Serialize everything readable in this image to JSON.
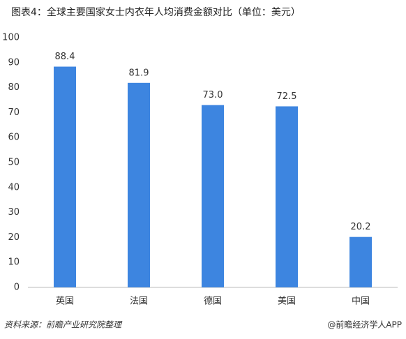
{
  "chart_data": {
    "type": "bar",
    "title": "图表4：全球主要国家女士内衣年人均消费金额对比（单位：美元）",
    "categories": [
      "英国",
      "法国",
      "德国",
      "美国",
      "中国"
    ],
    "values": [
      88.4,
      81.9,
      73.0,
      72.5,
      20.2
    ],
    "value_labels": [
      "88.4",
      "81.9",
      "73.0",
      "72.5",
      "20.2"
    ],
    "color": "#3d85e0",
    "ylim": [
      0,
      100
    ],
    "yticks": [
      0,
      10,
      20,
      30,
      40,
      50,
      60,
      70,
      80,
      90,
      100
    ],
    "grid": false,
    "source": "资料来源：前瞻产业研究院整理",
    "credit": "@前瞻经济学人APP"
  }
}
